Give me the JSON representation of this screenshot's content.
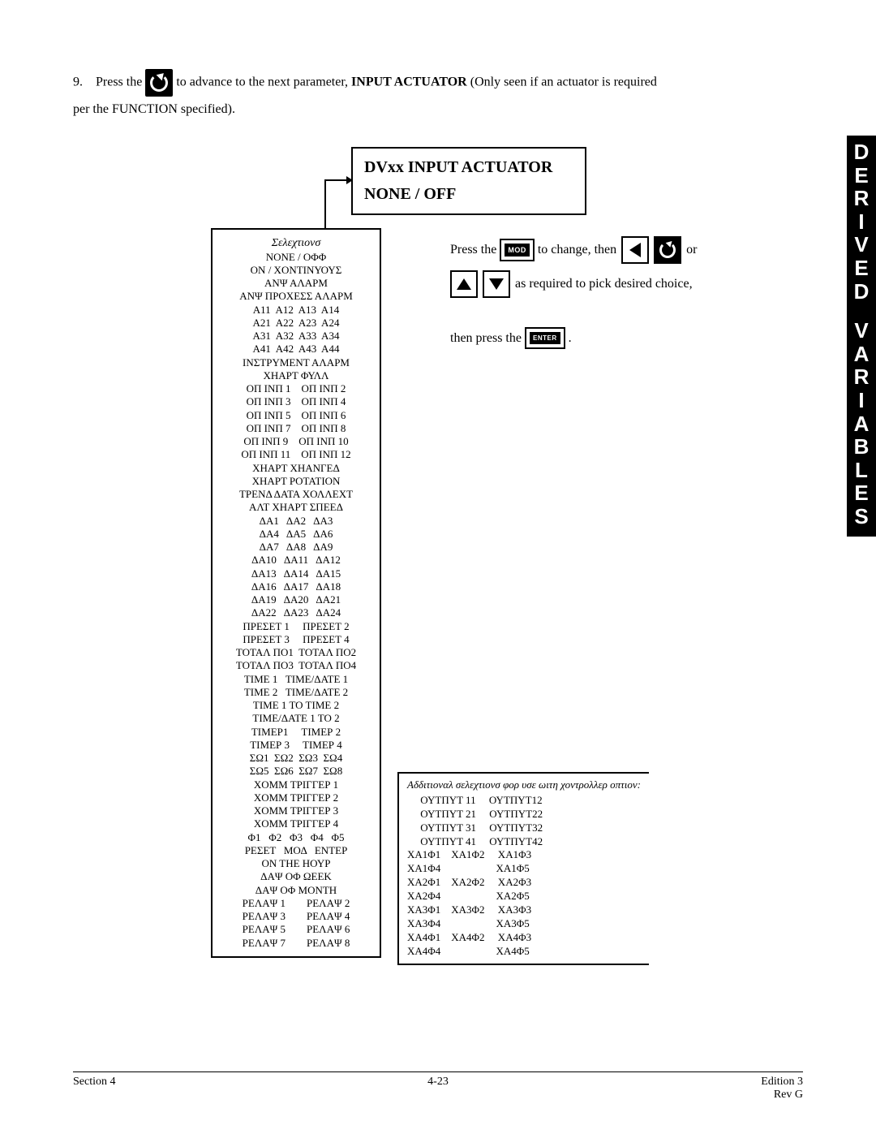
{
  "intro": {
    "num": "9.",
    "pre": "Press the",
    "post1": "to advance to the next parameter,",
    "bold": "INPUT ACTUATOR",
    "post2": "(Only seen if an actuator is required",
    "line2": "per the FUNCTION specified)."
  },
  "titleBox": {
    "t1": "DVxx  INPUT  ACTUATOR",
    "t2": "NONE / OFF"
  },
  "steps": {
    "s1a": "Press the",
    "s1b": "to change,  then",
    "s1c": "or",
    "s2": "as required to pick desired choice,",
    "s3": "then press the",
    "s3b": ".",
    "mod": "MOD",
    "enter": "ENTER"
  },
  "selections": {
    "hdr": "Σελεχτιονσ",
    "rows": [
      "ΝΟΝΕ / ΟΦΦ",
      "ΟΝ / ΧΟΝΤΙΝΥΟΥΣ",
      "ΑΝΨ ΑΛΑΡΜ",
      "ΑΝΨ ΠΡΟΧΕΣΣ ΑΛΑΡΜ",
      "Α11  Α12  Α13  Α14",
      "Α21  Α22  Α23  Α24",
      "Α31  Α32  Α33  Α34",
      "Α41  Α42  Α43  Α44",
      "ΙΝΣΤΡΥΜΕΝΤ ΑΛΑΡΜ",
      "ΧΗΑΡΤ ΦΥΛΛ",
      "ΟΠ ΙΝΠ 1    ΟΠ ΙΝΠ 2",
      "ΟΠ ΙΝΠ 3    ΟΠ ΙΝΠ 4",
      "ΟΠ ΙΝΠ 5    ΟΠ ΙΝΠ 6",
      "ΟΠ ΙΝΠ 7    ΟΠ ΙΝΠ 8",
      "ΟΠ ΙΝΠ 9    ΟΠ ΙΝΠ 10",
      "ΟΠ ΙΝΠ 11    ΟΠ ΙΝΠ 12",
      "ΧΗΑΡΤ ΧΗΑΝΓΕΔ",
      "ΧΗΑΡΤ ΡΟΤΑΤΙΟΝ",
      "ΤΡΕΝΔ ΔΑΤΑ ΧΟΛΛΕΧΤ",
      "ΑΛΤ ΧΗΑΡΤ ΣΠΕΕΔ",
      "ΔΑ1   ΔΑ2   ΔΑ3",
      "ΔΑ4   ΔΑ5   ΔΑ6",
      "ΔΑ7   ΔΑ8   ΔΑ9",
      "ΔΑ10   ΔΑ11   ΔΑ12",
      "ΔΑ13   ΔΑ14   ΔΑ15",
      "ΔΑ16   ΔΑ17   ΔΑ18",
      "ΔΑ19   ΔΑ20   ΔΑ21",
      "ΔΑ22   ΔΑ23   ΔΑ24",
      "ΠΡΕΣΕΤ 1     ΠΡΕΣΕΤ 2",
      "ΠΡΕΣΕΤ 3     ΠΡΕΣΕΤ 4",
      "ΤΟΤΑΛ ΠΟ1  ΤΟΤΑΛ ΠΟ2",
      "ΤΟΤΑΛ ΠΟ3  ΤΟΤΑΛ ΠΟ4",
      "ΤΙΜΕ 1   ΤΙΜΕ/ΔΑΤΕ 1",
      "ΤΙΜΕ 2   ΤΙΜΕ/ΔΑΤΕ 2",
      "ΤΙΜΕ 1 ΤΟ ΤΙΜΕ 2",
      "ΤΙΜΕ/ΔΑΤΕ 1 ΤΟ 2",
      "ΤΙΜΕΡ1     ΤΙΜΕΡ 2",
      "ΤΙΜΕΡ 3     ΤΙΜΕΡ 4",
      "ΣΩ1  ΣΩ2  ΣΩ3  ΣΩ4",
      "ΣΩ5  ΣΩ6  ΣΩ7  ΣΩ8",
      "ΧΟΜΜ ΤΡΙΓΓΕΡ 1",
      "ΧΟΜΜ ΤΡΙΓΓΕΡ 2",
      "ΧΟΜΜ ΤΡΙΓΓΕΡ 3",
      "ΧΟΜΜ ΤΡΙΓΓΕΡ 4",
      "Φ1   Φ2   Φ3   Φ4   Φ5",
      "ΡΕΣΕΤ   ΜΟΔ   ΕΝΤΕΡ",
      "ΟΝ ΤΗΕ ΗΟΥΡ",
      "ΔΑΨ ΟΦ ΩΕΕΚ",
      "ΔΑΨ ΟΦ ΜΟΝΤΗ",
      "ΡΕΛΑΨ 1        ΡΕΛΑΨ 2",
      "ΡΕΛΑΨ 3        ΡΕΛΑΨ 4",
      "ΡΕΛΑΨ 5        ΡΕΛΑΨ 6",
      "ΡΕΛΑΨ 7        ΡΕΛΑΨ 8"
    ]
  },
  "additional": {
    "hdr": "Αδδιτιοναλ σελεχτιονσ φορ υσε ωιτη χοντρολλερ οπτιον:",
    "rows": [
      "     ΟΥΤΠΥΤ 11     ΟΥΤΠΥΤ12",
      "     ΟΥΤΠΥΤ 21     ΟΥΤΠΥΤ22",
      "     ΟΥΤΠΥΤ 31     ΟΥΤΠΥΤ32",
      "     ΟΥΤΠΥΤ 41     ΟΥΤΠΥΤ42",
      "ΧΑ1Φ1    ΧΑ1Φ2     ΧΑ1Φ3",
      "ΧΑ1Φ4                     ΧΑ1Φ5",
      "ΧΑ2Φ1    ΧΑ2Φ2     ΧΑ2Φ3",
      "ΧΑ2Φ4                     ΧΑ2Φ5",
      "ΧΑ3Φ1    ΧΑ3Φ2     ΧΑ3Φ3",
      "ΧΑ3Φ4                     ΧΑ3Φ5",
      "ΧΑ4Φ1    ΧΑ4Φ2     ΧΑ4Φ3",
      "ΧΑ4Φ4                     ΧΑ4Φ5"
    ]
  },
  "sideTab": {
    "word1": [
      "D",
      "E",
      "R",
      "I",
      "V",
      "E",
      "D"
    ],
    "word2": [
      "V",
      "A",
      "R",
      "I",
      "A",
      "B",
      "L",
      "E",
      "S"
    ]
  },
  "footer": {
    "left": "Section 4",
    "center": "4-23",
    "right1": "Edition 3",
    "right2": "Rev  G"
  }
}
